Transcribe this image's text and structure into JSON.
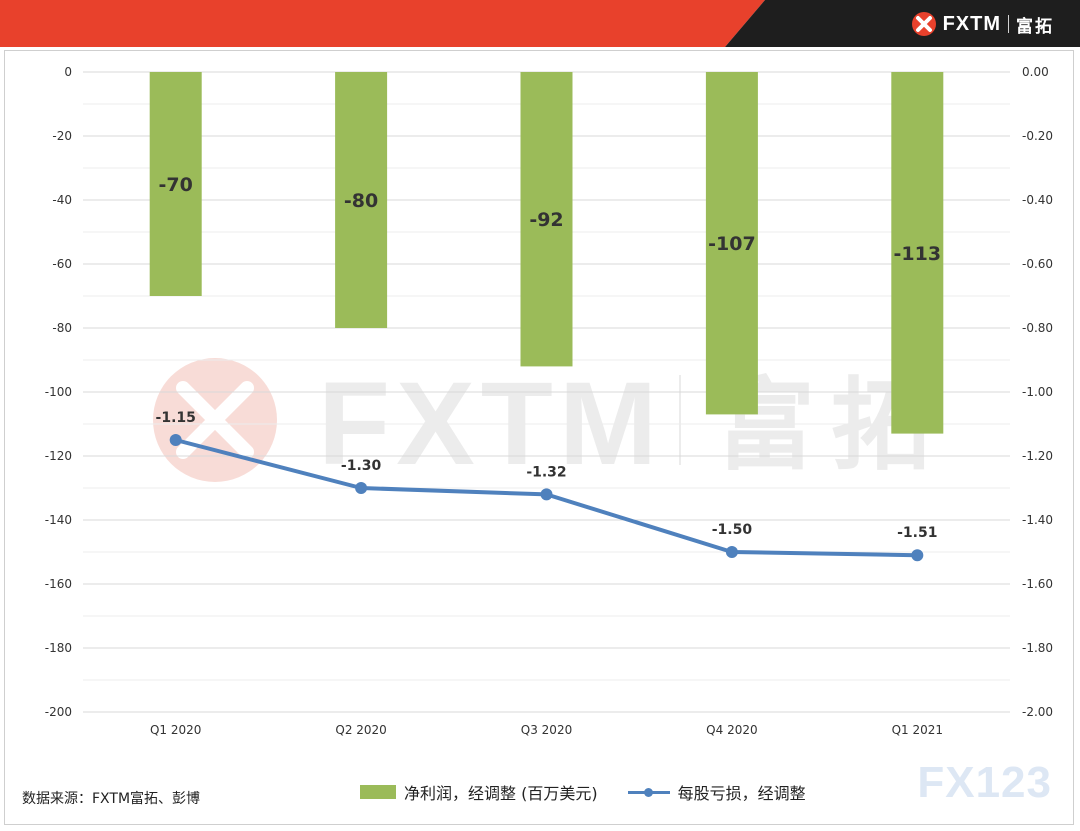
{
  "brand": {
    "name": "FXTM",
    "name_cn": "富拓",
    "header_color": "#e8412c",
    "header_dark": "#1e1e1e"
  },
  "watermark": {
    "text": "FXTM",
    "text_cn": "富拓",
    "corner_mark": "FX123"
  },
  "source_note": "数据来源：FXTM富拓、彭博",
  "chart_data": {
    "type": "bar",
    "categories": [
      "Q1 2020",
      "Q2 2020",
      "Q3 2020",
      "Q4 2020",
      "Q1 2021"
    ],
    "series": [
      {
        "name": "净利润，经调整 (百万美元)",
        "type": "bar",
        "axis": "left",
        "color": "#9bbb59",
        "values": [
          -70,
          -80,
          -92,
          -107,
          -113
        ],
        "labels": [
          "-70",
          "-80",
          "-92",
          "-107",
          "-113"
        ]
      },
      {
        "name": "每股亏损，经调整",
        "type": "line",
        "axis": "right",
        "color": "#4f81bd",
        "values": [
          -1.15,
          -1.3,
          -1.32,
          -1.5,
          -1.51
        ],
        "labels": [
          "-1.15",
          "-1.30",
          "-1.32",
          "-1.50",
          "-1.51"
        ]
      }
    ],
    "y_left": {
      "min": -200,
      "max": 0,
      "step": 20,
      "ticks": [
        "0",
        "-20",
        "-40",
        "-60",
        "-80",
        "-100",
        "-120",
        "-140",
        "-160",
        "-180",
        "-200"
      ]
    },
    "y_right": {
      "min": -2.0,
      "max": 0,
      "step": 0.2,
      "ticks": [
        "0.00",
        "-0.20",
        "-0.40",
        "-0.60",
        "-0.80",
        "-1.00",
        "-1.20",
        "-1.40",
        "-1.60",
        "-1.80",
        "-2.00"
      ]
    },
    "grid": true,
    "legend_position": "bottom"
  }
}
